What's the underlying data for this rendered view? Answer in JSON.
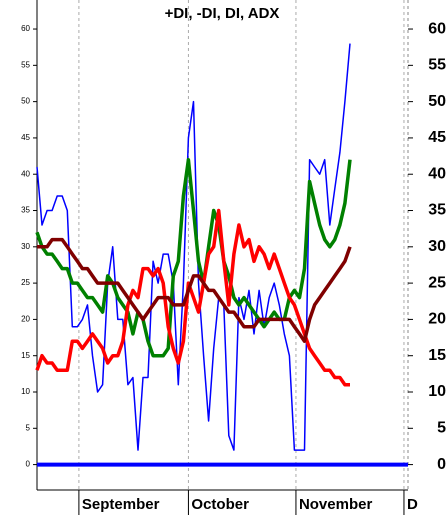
{
  "chart_data": {
    "type": "line",
    "title": "+DI, -DI, DI, ADX",
    "xlim": [
      0,
      73.5
    ],
    "xticks": [
      {
        "value": 8.3,
        "label": "September"
      },
      {
        "value": 30,
        "label": "October"
      },
      {
        "value": 51.3,
        "label": "November"
      },
      {
        "value": 72.7,
        "label": "D"
      }
    ],
    "ylim": [
      -3.5,
      64
    ],
    "yticks": [
      0,
      5,
      10,
      15,
      20,
      25,
      30,
      35,
      40,
      45,
      50,
      55,
      60
    ],
    "grid": true,
    "zero_line_color": "#0000ff",
    "series": [
      {
        "color": "#0000ff",
        "width": 1.5,
        "values": [
          41,
          33,
          35,
          35,
          37,
          37,
          35,
          19,
          19,
          20,
          22,
          15,
          10,
          11,
          25,
          30,
          20,
          20,
          11,
          12,
          2,
          12,
          12,
          28,
          25,
          29,
          29,
          25,
          11,
          25,
          45,
          50,
          25,
          15,
          6,
          16,
          23,
          22,
          4,
          2,
          23,
          20,
          24,
          18,
          24,
          19,
          23,
          25,
          22,
          18,
          15,
          2,
          2,
          2,
          42,
          41,
          40,
          42,
          33,
          38,
          43,
          50,
          58
        ]
      },
      {
        "color": "#008000",
        "width": 3.5,
        "values": [
          32,
          30,
          29,
          29,
          28,
          27,
          27,
          25,
          25,
          24,
          23,
          23,
          22,
          21,
          26,
          25,
          23,
          22,
          21,
          18,
          21,
          20,
          17,
          15,
          15,
          15,
          16,
          26,
          28,
          37,
          42,
          35,
          28,
          25,
          30,
          35,
          33,
          28,
          26,
          23,
          22,
          23,
          22,
          21,
          20,
          19,
          20,
          21,
          20,
          20,
          23,
          24,
          23,
          27,
          39,
          36,
          33,
          31,
          30,
          31,
          33,
          36,
          42
        ]
      },
      {
        "color": "#ff0000",
        "width": 3.5,
        "values": [
          13,
          15,
          14,
          14,
          13,
          13,
          13,
          17,
          17,
          16,
          17,
          18,
          17,
          16,
          14,
          15,
          15,
          17,
          22,
          24,
          23,
          27,
          27,
          26,
          27,
          25,
          19,
          16,
          14,
          17,
          25,
          23,
          21,
          25,
          29,
          30,
          35,
          28,
          22,
          29,
          33,
          30,
          31,
          28,
          30,
          29,
          27,
          29,
          27,
          25,
          23,
          22,
          20,
          18,
          16,
          15,
          14,
          13,
          13,
          12,
          12,
          11,
          11
        ]
      },
      {
        "color": "#800000",
        "width": 3.5,
        "values": [
          30,
          30,
          30,
          31,
          31,
          31,
          30,
          29,
          28,
          27,
          27,
          26,
          25,
          25,
          25,
          25,
          25,
          24,
          23,
          22,
          21,
          20,
          21,
          22,
          23,
          23,
          23,
          22,
          22,
          22,
          24,
          26,
          26,
          25,
          24,
          24,
          23,
          22,
          21,
          21,
          20,
          19,
          19,
          19,
          20,
          20,
          20,
          20,
          20,
          20,
          20,
          19,
          18,
          17,
          20,
          22,
          23,
          24,
          25,
          26,
          27,
          28,
          30
        ]
      }
    ]
  }
}
